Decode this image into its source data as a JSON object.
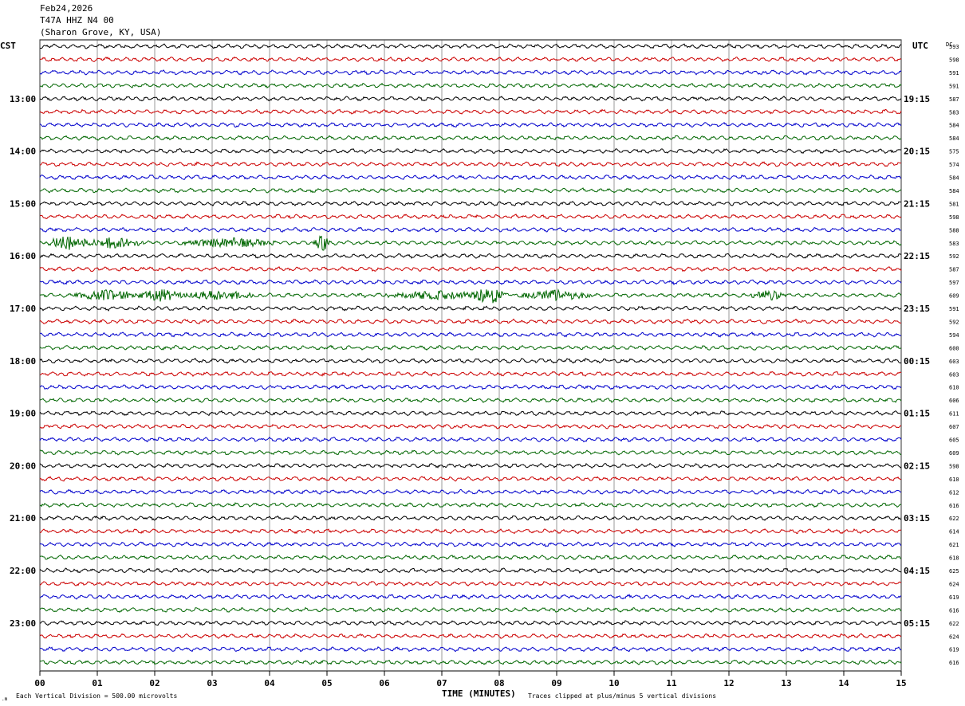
{
  "header": {
    "date": "Feb24,2026",
    "station": "T47A HHZ N4 00",
    "location": "(Sharon Grove, KY, USA)"
  },
  "footer": {
    "scale_text": "Each Vertical Division =  500.00 microvolts",
    "clip_text": "Traces clipped at plus/minus 5 vertical divisions"
  },
  "chart_data": {
    "type": "line",
    "left_axis_label": "CST",
    "right_axis_label": "UTC",
    "dc_label": "DC",
    "xlabel": "TIME (MINUTES)",
    "x_ticks": [
      "00",
      "01",
      "02",
      "03",
      "04",
      "05",
      "06",
      "07",
      "08",
      "09",
      "10",
      "11",
      "12",
      "13",
      "14",
      "15"
    ],
    "xlim": [
      0,
      15
    ],
    "trace_colors": [
      "#000000",
      "#cc0000",
      "#0000cc",
      "#006600"
    ],
    "trace_count": 48,
    "cst_labels": [
      {
        "row": 4,
        "text": "13:00"
      },
      {
        "row": 8,
        "text": "14:00"
      },
      {
        "row": 12,
        "text": "15:00"
      },
      {
        "row": 16,
        "text": "16:00"
      },
      {
        "row": 20,
        "text": "17:00"
      },
      {
        "row": 24,
        "text": "18:00"
      },
      {
        "row": 28,
        "text": "19:00"
      },
      {
        "row": 32,
        "text": "20:00"
      },
      {
        "row": 36,
        "text": "21:00"
      },
      {
        "row": 40,
        "text": "22:00"
      },
      {
        "row": 44,
        "text": "23:00"
      }
    ],
    "utc_labels": [
      {
        "row": 4,
        "text": "19:15"
      },
      {
        "row": 8,
        "text": "20:15"
      },
      {
        "row": 12,
        "text": "21:15"
      },
      {
        "row": 16,
        "text": "22:15"
      },
      {
        "row": 20,
        "text": "23:15"
      },
      {
        "row": 24,
        "text": "00:15"
      },
      {
        "row": 28,
        "text": "01:15"
      },
      {
        "row": 32,
        "text": "02:15"
      },
      {
        "row": 36,
        "text": "03:15"
      },
      {
        "row": 40,
        "text": "04:15"
      },
      {
        "row": 44,
        "text": "05:15"
      }
    ],
    "dc_offsets": [
      "593",
      "598",
      "591",
      "591",
      "587",
      "583",
      "584",
      "584",
      "575",
      "574",
      "584",
      "584",
      "581",
      "598",
      "588",
      "583",
      "592",
      "587",
      "597",
      "609",
      "591",
      "592",
      "594",
      "600",
      "603",
      "603",
      "610",
      "606",
      "611",
      "607",
      "605",
      "609",
      "598",
      "610",
      "612",
      "616",
      "622",
      "614",
      "621",
      "618",
      "625",
      "624",
      "619",
      "616",
      "622",
      "624",
      "619",
      "616"
    ],
    "events": [
      {
        "row": 15,
        "minute": 0.5,
        "width_min": 0.4,
        "amp": 3.0
      },
      {
        "row": 15,
        "minute": 1.3,
        "width_min": 0.5,
        "amp": 2.0
      },
      {
        "row": 15,
        "minute": 3.3,
        "width_min": 0.8,
        "amp": 1.6
      },
      {
        "row": 15,
        "minute": 4.9,
        "width_min": 0.15,
        "amp": 4.5
      },
      {
        "row": 19,
        "minute": 1.2,
        "width_min": 0.6,
        "amp": 1.8
      },
      {
        "row": 19,
        "minute": 2.1,
        "width_min": 0.4,
        "amp": 2.2
      },
      {
        "row": 19,
        "minute": 3.1,
        "width_min": 0.6,
        "amp": 1.6
      },
      {
        "row": 19,
        "minute": 6.9,
        "width_min": 0.9,
        "amp": 1.3
      },
      {
        "row": 19,
        "minute": 7.8,
        "width_min": 0.3,
        "amp": 5.0
      },
      {
        "row": 19,
        "minute": 9.0,
        "width_min": 0.6,
        "amp": 1.8
      },
      {
        "row": 19,
        "minute": 12.7,
        "width_min": 0.3,
        "amp": 1.6
      }
    ]
  }
}
